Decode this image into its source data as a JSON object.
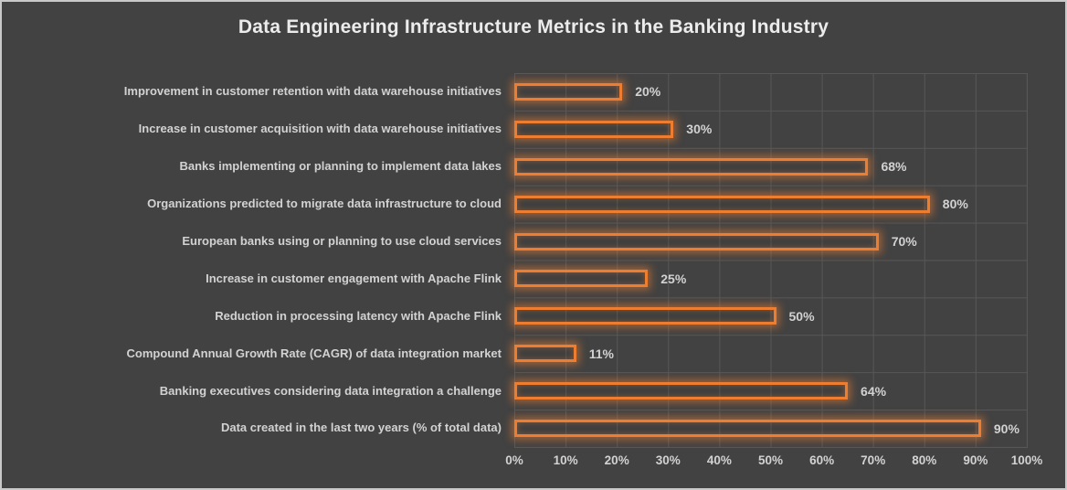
{
  "title": "Data Engineering Infrastructure Metrics in the Banking Industry",
  "colors": {
    "background": "#424242",
    "chart_border": "#c9c9c9",
    "gridline": "#575757",
    "bar_border": "#ED7D31",
    "bar_glow": "rgba(237,125,49,0.55)",
    "text": "#d2d2d2",
    "title_text": "#ececec"
  },
  "chart_data": {
    "type": "bar",
    "orientation": "horizontal",
    "title": "Data Engineering Infrastructure Metrics in the Banking Industry",
    "categories": [
      "Improvement in customer retention with data warehouse initiatives",
      "Increase in customer acquisition with data warehouse initiatives",
      "Banks implementing or planning to implement data lakes",
      "Organizations predicted to migrate data infrastructure to cloud",
      "European banks using or planning to use cloud services",
      "Increase in customer engagement with Apache Flink",
      "Reduction in processing latency with Apache Flink",
      "Compound Annual Growth Rate (CAGR) of data integration market",
      "Banking executives considering data integration a challenge",
      "Data created in the last two years (% of total data)"
    ],
    "values": [
      20,
      30,
      68,
      80,
      70,
      25,
      50,
      11,
      64,
      90
    ],
    "data_labels": [
      "20%",
      "30%",
      "68%",
      "80%",
      "70%",
      "25%",
      "50%",
      "11%",
      "64%",
      "90%"
    ],
    "xlabel": "",
    "ylabel": "",
    "xlim": [
      0,
      100
    ],
    "x_ticks": [
      "0%",
      "10%",
      "20%",
      "30%",
      "40%",
      "50%",
      "60%",
      "70%",
      "80%",
      "90%",
      "100%"
    ],
    "grid": true,
    "legend": false
  }
}
